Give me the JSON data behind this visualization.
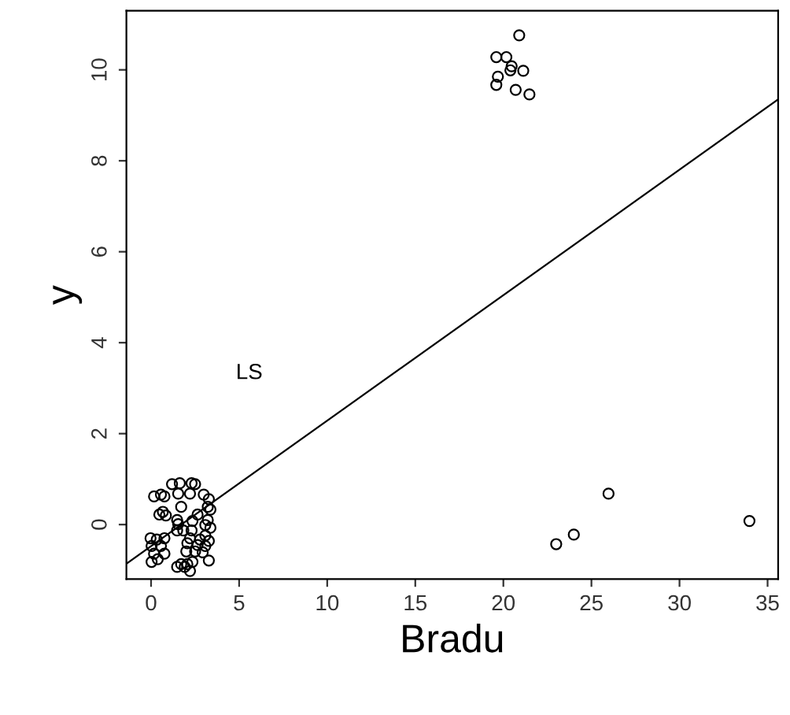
{
  "chart_data": {
    "type": "scatter",
    "xlabel": "Bradu",
    "ylabel": "y",
    "xlim": [
      -1.4,
      35.6
    ],
    "ylim": [
      -1.2,
      11.3
    ],
    "xticks": [
      0,
      5,
      10,
      15,
      20,
      25,
      30,
      35
    ],
    "yticks": [
      0,
      2,
      4,
      6,
      8,
      10
    ],
    "grid": false,
    "annotations": [
      "LS"
    ],
    "series": [
      {
        "marker": "circle",
        "color": "#000000",
        "x": [
          20.9,
          19.6,
          20.17,
          20.47,
          20.4,
          21.13,
          19.69,
          19.6,
          20.7,
          21.48,
          25.97,
          24.0,
          23.0,
          33.97,
          1.19,
          1.63,
          2.3,
          2.5,
          0.17,
          0.56,
          0.76,
          1.54,
          2.21,
          2.99,
          3.28,
          1.71,
          3.22,
          3.37,
          0.47,
          0.67,
          0.84,
          2.64,
          1.48,
          1.54,
          2.35,
          3.22,
          3.08,
          1.48,
          1.83,
          2.3,
          3.37,
          -0.03,
          0.32,
          0.76,
          2.21,
          2.78,
          3.08,
          0.03,
          0.56,
          2.06,
          2.64,
          3.08,
          3.28,
          0.17,
          0.76,
          2.0,
          2.5,
          2.93,
          0.03,
          0.38,
          1.71,
          2.06,
          2.35,
          3.28,
          1.48,
          1.91,
          2.21
        ],
        "values": [
          10.76,
          10.28,
          10.28,
          10.08,
          9.99,
          9.98,
          9.85,
          9.67,
          9.56,
          9.46,
          0.68,
          -0.22,
          -0.43,
          0.08,
          0.89,
          0.91,
          0.91,
          0.89,
          0.62,
          0.66,
          0.62,
          0.68,
          0.68,
          0.66,
          0.56,
          0.39,
          0.39,
          0.33,
          0.22,
          0.28,
          0.2,
          0.22,
          0.1,
          0.01,
          0.08,
          0.1,
          -0.01,
          -0.13,
          -0.13,
          -0.13,
          -0.07,
          -0.3,
          -0.33,
          -0.3,
          -0.3,
          -0.33,
          -0.24,
          -0.47,
          -0.47,
          -0.41,
          -0.45,
          -0.47,
          -0.36,
          -0.64,
          -0.64,
          -0.59,
          -0.59,
          -0.61,
          -0.82,
          -0.76,
          -0.87,
          -0.87,
          -0.82,
          -0.79,
          -0.93,
          -0.93,
          -1.02
        ]
      },
      {
        "type": "line",
        "marker": "none",
        "color": "#000000",
        "line_style": "solid",
        "x": [
          -1.4,
          35.6
        ],
        "values": [
          -0.86,
          9.35
        ]
      }
    ]
  }
}
